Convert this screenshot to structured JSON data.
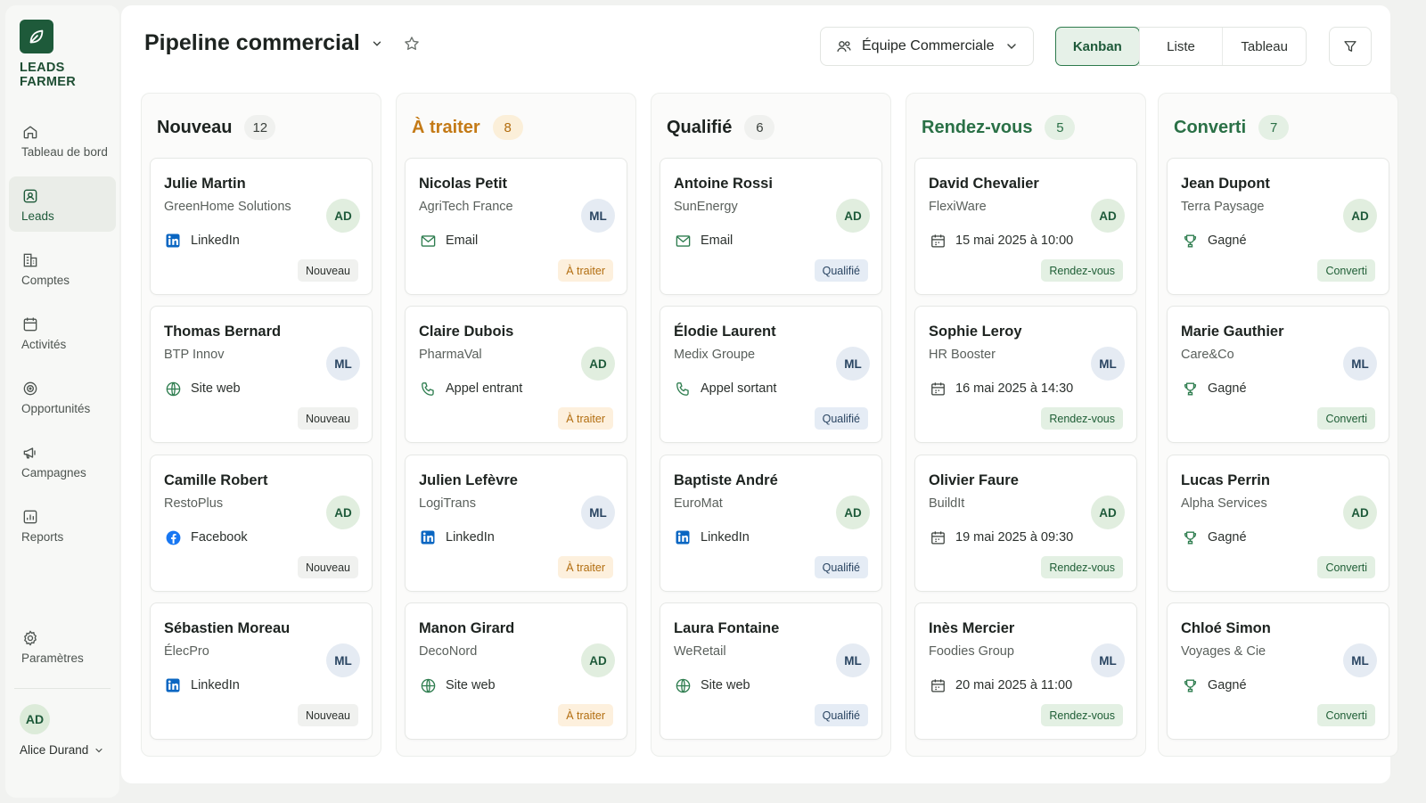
{
  "brand": {
    "name_line1": "LEADS",
    "name_line2": "FARMER",
    "logo_icon": "leaf-icon"
  },
  "nav": [
    {
      "label": "Tableau de bord",
      "icon": "home-icon",
      "active": false
    },
    {
      "label": "Leads",
      "icon": "leads-icon",
      "active": true
    },
    {
      "label": "Comptes",
      "icon": "building-icon",
      "active": false
    },
    {
      "label": "Activités",
      "icon": "calendar-icon",
      "active": false
    },
    {
      "label": "Opportunités",
      "icon": "target-icon",
      "active": false
    },
    {
      "label": "Campagnes",
      "icon": "megaphone-icon",
      "active": false
    },
    {
      "label": "Reports",
      "icon": "chart-icon",
      "active": false
    }
  ],
  "settings": {
    "label": "Paramètres",
    "icon": "gear-icon"
  },
  "user": {
    "initials": "AD",
    "name": "Alice Durand"
  },
  "header": {
    "title": "Pipeline commercial",
    "team": "Équipe Commerciale",
    "views": [
      {
        "label": "Kanban",
        "active": true
      },
      {
        "label": "Liste",
        "active": false
      },
      {
        "label": "Tableau",
        "active": false
      }
    ]
  },
  "columns": [
    {
      "title": "Nouveau",
      "count": "12",
      "title_color": "#1d2320",
      "count_bg": "#f0f1ef",
      "count_color": "#3a403c",
      "badge_bg": "#f0f1ef",
      "badge_color": "#2d322f",
      "cards": [
        {
          "name": "Julie Martin",
          "company": "GreenHome Solutions",
          "source": "LinkedIn",
          "source_icon": "linkedin-icon",
          "avatar": "AD",
          "badge": "Nouveau"
        },
        {
          "name": "Thomas Bernard",
          "company": "BTP Innov",
          "source": "Site web",
          "source_icon": "globe-icon",
          "avatar": "ML",
          "badge": "Nouveau"
        },
        {
          "name": "Camille Robert",
          "company": "RestoPlus",
          "source": "Facebook",
          "source_icon": "facebook-icon",
          "avatar": "AD",
          "badge": "Nouveau"
        },
        {
          "name": "Sébastien Moreau",
          "company": "ÉlecPro",
          "source": "LinkedIn",
          "source_icon": "linkedin-icon",
          "avatar": "ML",
          "badge": "Nouveau"
        }
      ]
    },
    {
      "title": "À traiter",
      "count": "8",
      "title_color": "#c47a16",
      "count_bg": "#fbefd9",
      "count_color": "#b26d0f",
      "badge_bg": "#fdf0dd",
      "badge_color": "#b26d0f",
      "cards": [
        {
          "name": "Nicolas Petit",
          "company": "AgriTech France",
          "source": "Email",
          "source_icon": "mail-icon",
          "avatar": "ML",
          "badge": "À traiter"
        },
        {
          "name": "Claire Dubois",
          "company": "PharmaVal",
          "source": "Appel entrant",
          "source_icon": "phone-icon",
          "avatar": "AD",
          "badge": "À traiter"
        },
        {
          "name": "Julien Lefèvre",
          "company": "LogiTrans",
          "source": "LinkedIn",
          "source_icon": "linkedin-icon",
          "avatar": "ML",
          "badge": "À traiter"
        },
        {
          "name": "Manon Girard",
          "company": "DecoNord",
          "source": "Site web",
          "source_icon": "globe-icon",
          "avatar": "AD",
          "badge": "À traiter"
        }
      ]
    },
    {
      "title": "Qualifié",
      "count": "6",
      "title_color": "#1d2320",
      "count_bg": "#f0f1ef",
      "count_color": "#3a403c",
      "badge_bg": "#e5ecf5",
      "badge_color": "#2a4562",
      "cards": [
        {
          "name": "Antoine Rossi",
          "company": "SunEnergy",
          "source": "Email",
          "source_icon": "mail-icon",
          "avatar": "AD",
          "badge": "Qualifié"
        },
        {
          "name": "Élodie Laurent",
          "company": "Medix Groupe",
          "source": "Appel sortant",
          "source_icon": "phone-icon",
          "avatar": "ML",
          "badge": "Qualifié"
        },
        {
          "name": "Baptiste André",
          "company": "EuroMat",
          "source": "LinkedIn",
          "source_icon": "linkedin-icon",
          "avatar": "AD",
          "badge": "Qualifié"
        },
        {
          "name": "Laura Fontaine",
          "company": "WeRetail",
          "source": "Site web",
          "source_icon": "globe-icon",
          "avatar": "ML",
          "badge": "Qualifié"
        }
      ]
    },
    {
      "title": "Rendez-vous",
      "count": "5",
      "title_color": "#2a7046",
      "count_bg": "#e4f0e4",
      "count_color": "#2a7046",
      "badge_bg": "#e3f0e3",
      "badge_color": "#1f5e36",
      "cards": [
        {
          "name": "David Chevalier",
          "company": "FlexiWare",
          "source": "15 mai 2025 à 10:00",
          "source_icon": "calendar-icon",
          "avatar": "AD",
          "badge": "Rendez-vous"
        },
        {
          "name": "Sophie Leroy",
          "company": "HR Booster",
          "source": "16 mai 2025 à 14:30",
          "source_icon": "calendar-icon",
          "avatar": "ML",
          "badge": "Rendez-vous"
        },
        {
          "name": "Olivier Faure",
          "company": "BuildIt",
          "source": "19 mai 2025 à 09:30",
          "source_icon": "calendar-icon",
          "avatar": "AD",
          "badge": "Rendez-vous"
        },
        {
          "name": "Inès Mercier",
          "company": "Foodies Group",
          "source": "20 mai 2025 à 11:00",
          "source_icon": "calendar-icon",
          "avatar": "ML",
          "badge": "Rendez-vous"
        }
      ]
    },
    {
      "title": "Converti",
      "count": "7",
      "title_color": "#2a7046",
      "count_bg": "#e4f0e4",
      "count_color": "#2a7046",
      "badge_bg": "#e3f0e3",
      "badge_color": "#1f5e36",
      "cards": [
        {
          "name": "Jean Dupont",
          "company": "Terra Paysage",
          "source": "Gagné",
          "source_icon": "trophy-icon",
          "avatar": "AD",
          "badge": "Converti"
        },
        {
          "name": "Marie Gauthier",
          "company": "Care&Co",
          "source": "Gagné",
          "source_icon": "trophy-icon",
          "avatar": "ML",
          "badge": "Converti"
        },
        {
          "name": "Lucas Perrin",
          "company": "Alpha Services",
          "source": "Gagné",
          "source_icon": "trophy-icon",
          "avatar": "AD",
          "badge": "Converti"
        },
        {
          "name": "Chloé Simon",
          "company": "Voyages & Cie",
          "source": "Gagné",
          "source_icon": "trophy-icon",
          "avatar": "ML",
          "badge": "Converti"
        }
      ]
    }
  ]
}
